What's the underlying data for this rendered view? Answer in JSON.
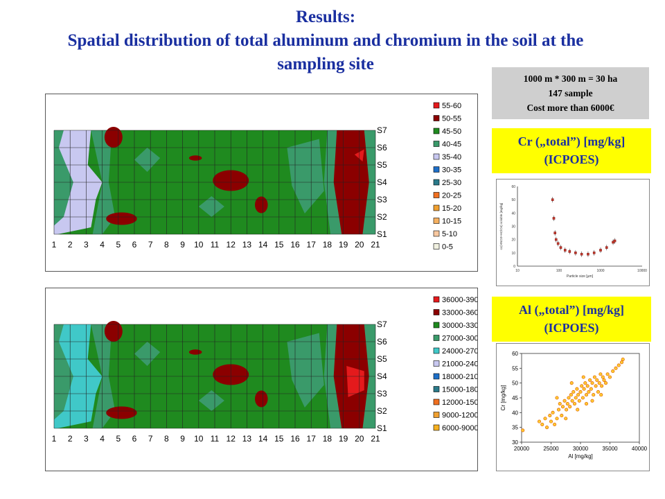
{
  "title": {
    "line1": "Results:",
    "line2": "Spatial distribution of total aluminum and chromium in the soil at the sampling site"
  },
  "info": {
    "line1": "1000 m * 300 m = 30 ha",
    "line2": "147 sample",
    "line3": "Cost more than 6000€"
  },
  "cr_label": {
    "line1": "Cr („total”) [mg/kg]",
    "line2": "(ICPOES)"
  },
  "al_label": {
    "line1": "Al („total”) [mg/kg]",
    "line2": "(ICPOES)"
  },
  "chart_data": [
    {
      "type": "heatmap",
      "x_ticks": [
        "1",
        "2",
        "3",
        "4",
        "5",
        "6",
        "7",
        "8",
        "9",
        "10",
        "11",
        "12",
        "13",
        "14",
        "15",
        "16",
        "17",
        "18",
        "19",
        "20",
        "21"
      ],
      "y_ticks": [
        "S1",
        "S2",
        "S3",
        "S4",
        "S5",
        "S6",
        "S7"
      ],
      "legend": [
        {
          "label": "55-60",
          "color": "#e41a1c"
        },
        {
          "label": "50-55",
          "color": "#8b0000"
        },
        {
          "label": "45-50",
          "color": "#1f8a1f"
        },
        {
          "label": "40-45",
          "color": "#3a9a6a"
        },
        {
          "label": "35-40",
          "color": "#c8c8f0"
        },
        {
          "label": "30-35",
          "color": "#1e6fc8"
        },
        {
          "label": "25-30",
          "color": "#2a7a8a"
        },
        {
          "label": "20-25",
          "color": "#f07020"
        },
        {
          "label": "15-20",
          "color": "#f0a030"
        },
        {
          "label": "10-15",
          "color": "#f5b060"
        },
        {
          "label": "5-10",
          "color": "#f8c8a0"
        },
        {
          "label": "0-5",
          "color": "#f0f0e0"
        }
      ],
      "legend_placement": "right",
      "grid": true
    },
    {
      "type": "heatmap",
      "x_ticks": [
        "1",
        "2",
        "3",
        "4",
        "5",
        "6",
        "7",
        "8",
        "9",
        "10",
        "11",
        "12",
        "13",
        "14",
        "15",
        "16",
        "17",
        "18",
        "19",
        "20",
        "21"
      ],
      "y_ticks": [
        "S1",
        "S2",
        "S3",
        "S4",
        "S5",
        "S6",
        "S7"
      ],
      "legend": [
        {
          "label": "36000-39000",
          "color": "#e41a1c"
        },
        {
          "label": "33000-36000",
          "color": "#8b0000"
        },
        {
          "label": "30000-33000",
          "color": "#1f8a1f"
        },
        {
          "label": "27000-30000",
          "color": "#3a9a6a"
        },
        {
          "label": "24000-27000",
          "color": "#40c8c8"
        },
        {
          "label": "21000-24000",
          "color": "#c8c8f0"
        },
        {
          "label": "18000-21000",
          "color": "#1e6fc8"
        },
        {
          "label": "15000-18000",
          "color": "#2a7a8a"
        },
        {
          "label": "12000-15000",
          "color": "#f07020"
        },
        {
          "label": "9000-12000",
          "color": "#f0a030"
        },
        {
          "label": "6000-9000",
          "color": "#f5b020"
        }
      ],
      "legend_placement": "right",
      "grid": true
    },
    {
      "type": "scatter",
      "xscale": "log",
      "xlabel": "Particle size [µm]",
      "ylabel": "cc(HNO3+HClO4) soluble [mg/kg]",
      "xlim": [
        10,
        10000
      ],
      "ylim": [
        0,
        60
      ],
      "x_ticks": [
        "10",
        "100",
        "1000",
        "10000"
      ],
      "y_ticks": [
        "0",
        "10",
        "20",
        "30",
        "40",
        "50",
        "60"
      ],
      "points": [
        {
          "x": 70,
          "y": 50
        },
        {
          "x": 75,
          "y": 36
        },
        {
          "x": 80,
          "y": 25
        },
        {
          "x": 85,
          "y": 20
        },
        {
          "x": 95,
          "y": 17
        },
        {
          "x": 110,
          "y": 14
        },
        {
          "x": 140,
          "y": 12
        },
        {
          "x": 180,
          "y": 11
        },
        {
          "x": 250,
          "y": 10
        },
        {
          "x": 350,
          "y": 9
        },
        {
          "x": 500,
          "y": 9
        },
        {
          "x": 700,
          "y": 10
        },
        {
          "x": 1000,
          "y": 12
        },
        {
          "x": 1400,
          "y": 14
        },
        {
          "x": 2000,
          "y": 18
        },
        {
          "x": 2200,
          "y": 19
        }
      ]
    },
    {
      "type": "scatter",
      "xlabel": "Al [mg/kg]",
      "ylabel": "Cr [mg/kg]",
      "xlim": [
        20000,
        40000
      ],
      "ylim": [
        30,
        60
      ],
      "x_ticks": [
        "20000",
        "25000",
        "30000",
        "35000",
        "40000"
      ],
      "y_ticks": [
        "30",
        "35",
        "40",
        "45",
        "50",
        "55",
        "60"
      ],
      "points": [
        {
          "x": 20200,
          "y": 34
        },
        {
          "x": 23000,
          "y": 37
        },
        {
          "x": 23500,
          "y": 36
        },
        {
          "x": 24000,
          "y": 38
        },
        {
          "x": 24300,
          "y": 35
        },
        {
          "x": 24800,
          "y": 39
        },
        {
          "x": 25000,
          "y": 37
        },
        {
          "x": 25300,
          "y": 40
        },
        {
          "x": 25600,
          "y": 36
        },
        {
          "x": 26000,
          "y": 38
        },
        {
          "x": 26300,
          "y": 41
        },
        {
          "x": 26500,
          "y": 43
        },
        {
          "x": 26800,
          "y": 39
        },
        {
          "x": 27000,
          "y": 42
        },
        {
          "x": 27300,
          "y": 44
        },
        {
          "x": 27600,
          "y": 41
        },
        {
          "x": 27800,
          "y": 43
        },
        {
          "x": 28000,
          "y": 45
        },
        {
          "x": 28200,
          "y": 42
        },
        {
          "x": 28400,
          "y": 46
        },
        {
          "x": 28600,
          "y": 44
        },
        {
          "x": 28800,
          "y": 47
        },
        {
          "x": 29000,
          "y": 43
        },
        {
          "x": 29200,
          "y": 45
        },
        {
          "x": 29400,
          "y": 48
        },
        {
          "x": 29600,
          "y": 46
        },
        {
          "x": 29800,
          "y": 44
        },
        {
          "x": 30000,
          "y": 47
        },
        {
          "x": 30200,
          "y": 49
        },
        {
          "x": 30400,
          "y": 45
        },
        {
          "x": 30600,
          "y": 48
        },
        {
          "x": 30800,
          "y": 50
        },
        {
          "x": 31000,
          "y": 46
        },
        {
          "x": 31200,
          "y": 49
        },
        {
          "x": 31400,
          "y": 47
        },
        {
          "x": 31600,
          "y": 51
        },
        {
          "x": 31800,
          "y": 48
        },
        {
          "x": 32000,
          "y": 50
        },
        {
          "x": 32200,
          "y": 46
        },
        {
          "x": 32400,
          "y": 52
        },
        {
          "x": 32600,
          "y": 49
        },
        {
          "x": 32800,
          "y": 51
        },
        {
          "x": 33000,
          "y": 47
        },
        {
          "x": 33200,
          "y": 50
        },
        {
          "x": 33400,
          "y": 53
        },
        {
          "x": 33600,
          "y": 49
        },
        {
          "x": 33800,
          "y": 52
        },
        {
          "x": 34000,
          "y": 51
        },
        {
          "x": 34300,
          "y": 50
        },
        {
          "x": 34600,
          "y": 53
        },
        {
          "x": 35000,
          "y": 52
        },
        {
          "x": 35500,
          "y": 54
        },
        {
          "x": 36000,
          "y": 55
        },
        {
          "x": 36500,
          "y": 56
        },
        {
          "x": 37000,
          "y": 57
        },
        {
          "x": 37200,
          "y": 58
        },
        {
          "x": 27500,
          "y": 38
        },
        {
          "x": 29500,
          "y": 41
        },
        {
          "x": 31000,
          "y": 43
        },
        {
          "x": 30500,
          "y": 52
        },
        {
          "x": 28500,
          "y": 50
        },
        {
          "x": 26000,
          "y": 45
        },
        {
          "x": 33500,
          "y": 46
        },
        {
          "x": 32000,
          "y": 44
        }
      ]
    }
  ]
}
